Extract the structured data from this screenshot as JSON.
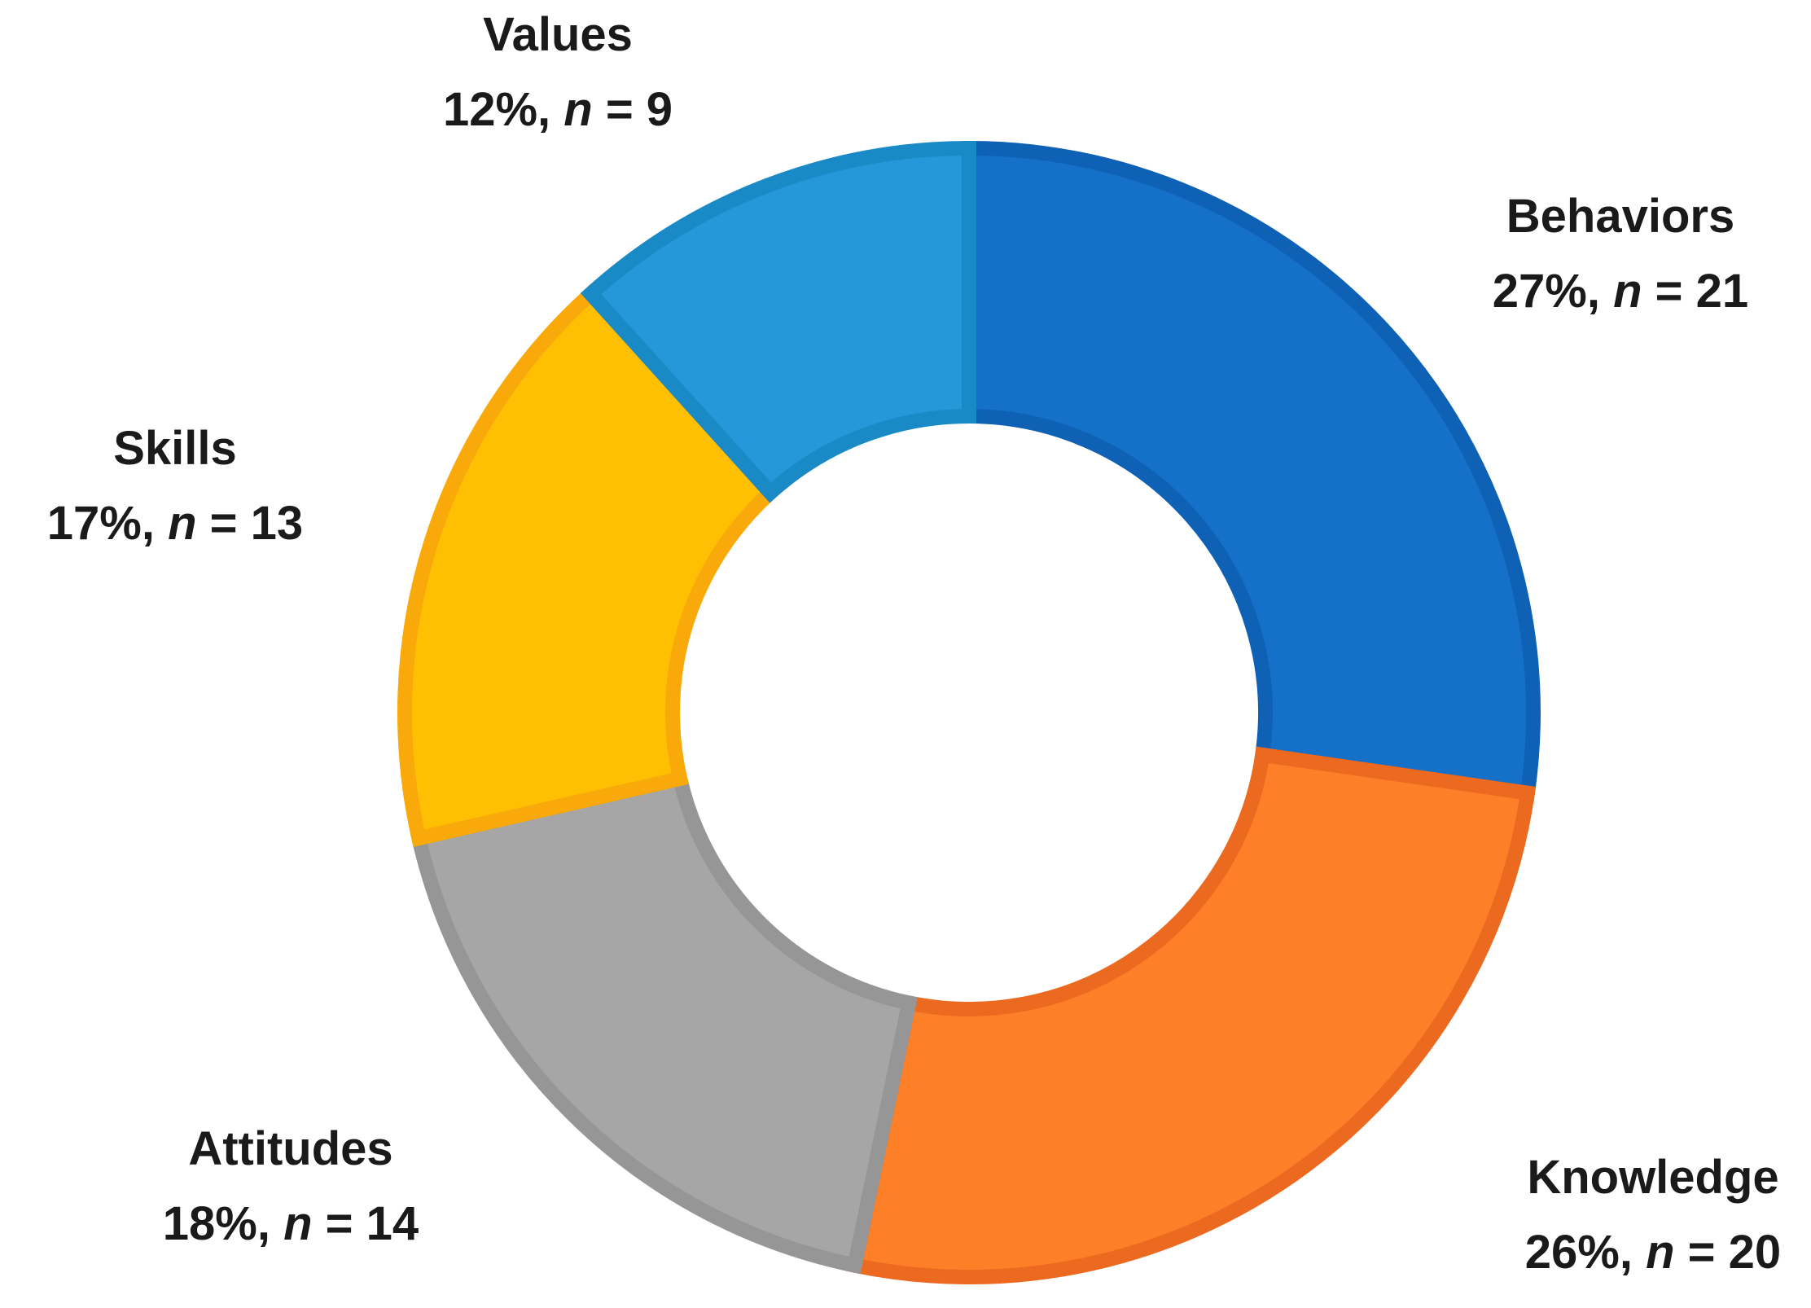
{
  "chart_data": {
    "type": "pie",
    "donut": true,
    "categories": [
      "Behaviors",
      "Knowledge",
      "Attitudes",
      "Skills",
      "Values"
    ],
    "values": [
      21,
      20,
      14,
      13,
      9
    ],
    "percent_labels": [
      "27%",
      "26%",
      "18%",
      "17%",
      "12%"
    ],
    "n_symbol": "n",
    "colors": [
      "#1570C8",
      "#FD7F27",
      "#A6A6A6",
      "#FFBF03",
      "#2498D8"
    ],
    "border_colors": [
      "#0F61B6",
      "#EC6A1F",
      "#969696",
      "#F9A90A",
      "#1A8AC6"
    ],
    "start_angle_deg": 0,
    "direction": "clockwise",
    "title": "",
    "legend": "none"
  }
}
